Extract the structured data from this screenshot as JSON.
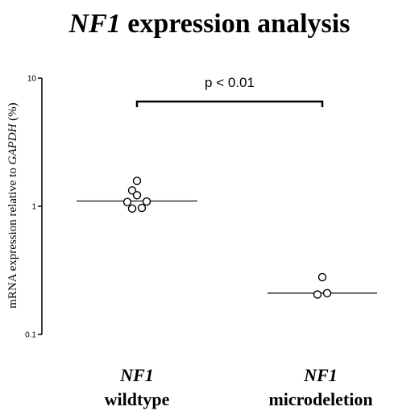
{
  "chart_data": {
    "type": "scatter",
    "title": {
      "gene": "NF1",
      "rest": " expression analysis"
    },
    "ylabel": {
      "prefix": "mRNA expression relative to ",
      "gene": "GAPDH",
      "suffix": " (%)"
    },
    "yscale": "log",
    "ylim": [
      0.1,
      10
    ],
    "yticks": [
      {
        "value": 0.1,
        "label": "0.1"
      },
      {
        "value": 1,
        "label": "1"
      },
      {
        "value": 10,
        "label": "10"
      }
    ],
    "categories": [
      {
        "gene": "NF1",
        "label": "wildtype"
      },
      {
        "gene": "NF1",
        "label": "microdeletion"
      }
    ],
    "series": [
      {
        "category": 0,
        "median": 1.1,
        "points": [
          {
            "offset": 0.0,
            "value": 1.58
          },
          {
            "offset": -0.5,
            "value": 1.33
          },
          {
            "offset": 0.0,
            "value": 1.22
          },
          {
            "offset": -1.0,
            "value": 1.08
          },
          {
            "offset": 1.0,
            "value": 1.09
          },
          {
            "offset": -0.5,
            "value": 0.96
          },
          {
            "offset": 0.5,
            "value": 0.97
          }
        ]
      },
      {
        "category": 1,
        "median": 0.21,
        "points": [
          {
            "offset": 0.0,
            "value": 0.28
          },
          {
            "offset": -0.5,
            "value": 0.205
          },
          {
            "offset": 0.5,
            "value": 0.21
          }
        ]
      }
    ],
    "significance": {
      "label": "p < 0.01",
      "from": 0,
      "to": 1
    }
  }
}
